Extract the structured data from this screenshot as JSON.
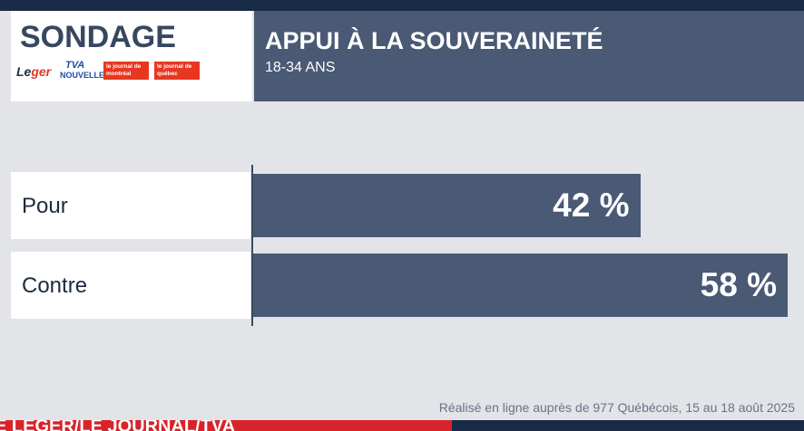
{
  "header": {
    "badge": "SONDAGE",
    "title": "APPUI À LA SOUVERAINETÉ",
    "subtitle": "18-34 ANS"
  },
  "logos": {
    "leger_a": "Le",
    "leger_b": "ger",
    "tva_top": "TVA",
    "tva_bottom": "NOUVELLES",
    "jdm": "le journal de montréal",
    "jdq": "le journal de québec"
  },
  "chart_data": {
    "type": "bar",
    "orientation": "horizontal",
    "categories": [
      "Pour",
      "Contre"
    ],
    "values": [
      42,
      58
    ],
    "value_labels": [
      "42 %",
      "58 %"
    ],
    "xlim": [
      0,
      58
    ],
    "grid": false
  },
  "footnote": "Réalisé en ligne auprès de 977 Québécois, 15 au 18 août 2025",
  "ticker": {
    "text": "É LÉGER/LE JOURNAL/TVA"
  },
  "colors": {
    "bar": "#4a5974",
    "header": "#4a5974",
    "panel": "#e2e4e8",
    "frame": "#182a46",
    "ticker": "#d8232a"
  }
}
